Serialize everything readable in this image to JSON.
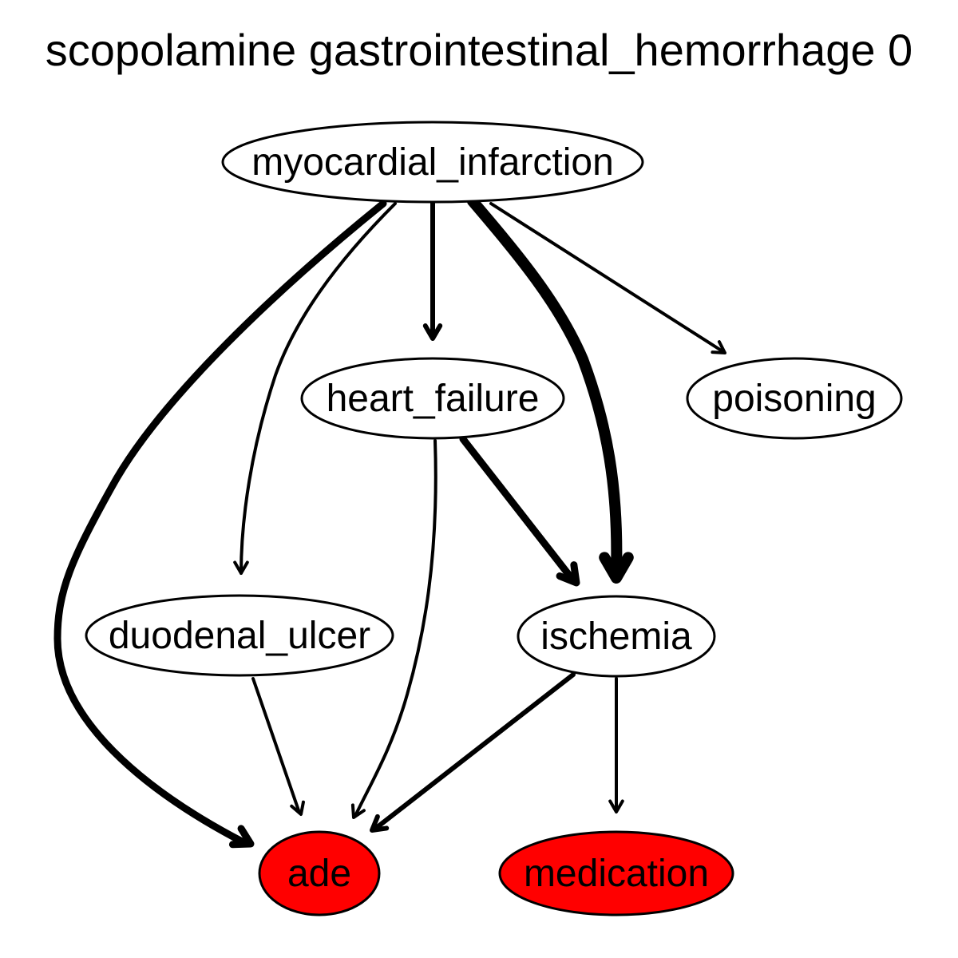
{
  "title": "scopolamine gastrointestinal_hemorrhage 0",
  "colors": {
    "highlight_fill": "#ff0000",
    "default_fill": "#ffffff",
    "stroke": "#000000"
  },
  "nodes": [
    {
      "id": "myocardial_infarction",
      "label": "myocardial_infarction",
      "highlighted": false
    },
    {
      "id": "heart_failure",
      "label": "heart_failure",
      "highlighted": false
    },
    {
      "id": "poisoning",
      "label": "poisoning",
      "highlighted": false
    },
    {
      "id": "duodenal_ulcer",
      "label": "duodenal_ulcer",
      "highlighted": false
    },
    {
      "id": "ischemia",
      "label": "ischemia",
      "highlighted": false
    },
    {
      "id": "ade",
      "label": "ade",
      "highlighted": true
    },
    {
      "id": "medication",
      "label": "medication",
      "highlighted": true
    }
  ],
  "edges": [
    {
      "from": "myocardial_infarction",
      "to": "ade",
      "weight": "heavy"
    },
    {
      "from": "myocardial_infarction",
      "to": "duodenal_ulcer",
      "weight": "light"
    },
    {
      "from": "myocardial_infarction",
      "to": "heart_failure",
      "weight": "medium"
    },
    {
      "from": "myocardial_infarction",
      "to": "ischemia",
      "weight": "heaviest"
    },
    {
      "from": "myocardial_infarction",
      "to": "poisoning",
      "weight": "light"
    },
    {
      "from": "heart_failure",
      "to": "ade",
      "weight": "light"
    },
    {
      "from": "heart_failure",
      "to": "ischemia",
      "weight": "heavy"
    },
    {
      "from": "duodenal_ulcer",
      "to": "ade",
      "weight": "light"
    },
    {
      "from": "ischemia",
      "to": "ade",
      "weight": "medium"
    },
    {
      "from": "ischemia",
      "to": "medication",
      "weight": "light"
    }
  ]
}
